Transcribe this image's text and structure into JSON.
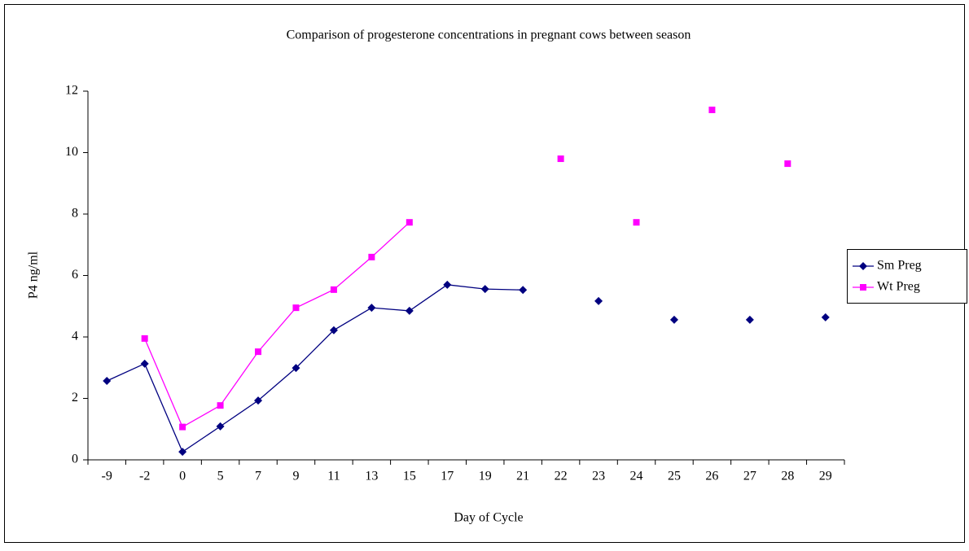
{
  "chart_data": {
    "type": "line",
    "title": "Comparison of progesterone concentrations in pregnant cows between season",
    "x_label": "Day of Cycle",
    "y_label": "P4 ng/ml",
    "categories": [
      "-9",
      "-2",
      "0",
      "5",
      "7",
      "9",
      "11",
      "13",
      "15",
      "17",
      "19",
      "21",
      "22",
      "23",
      "24",
      "25",
      "26",
      "27",
      "28",
      "29"
    ],
    "series": [
      {
        "name": "Sm Preg",
        "color": "#000080",
        "marker": "diamond",
        "values": [
          2.57,
          3.13,
          0.26,
          1.09,
          1.93,
          2.99,
          4.22,
          4.95,
          4.85,
          5.7,
          5.56,
          5.53,
          null,
          5.17,
          null,
          4.56,
          null,
          4.56,
          null,
          4.64
        ]
      },
      {
        "name": "Wt Preg",
        "color": "#ff00ff",
        "marker": "square",
        "values": [
          null,
          3.95,
          1.07,
          1.77,
          3.52,
          4.95,
          5.54,
          6.6,
          7.73,
          null,
          null,
          null,
          9.8,
          null,
          7.73,
          null,
          11.39,
          null,
          9.64,
          null
        ]
      }
    ],
    "ylim": [
      0,
      12
    ],
    "yticks": [
      0,
      2,
      4,
      6,
      8,
      10,
      12
    ],
    "grid": false,
    "legend": "right"
  }
}
